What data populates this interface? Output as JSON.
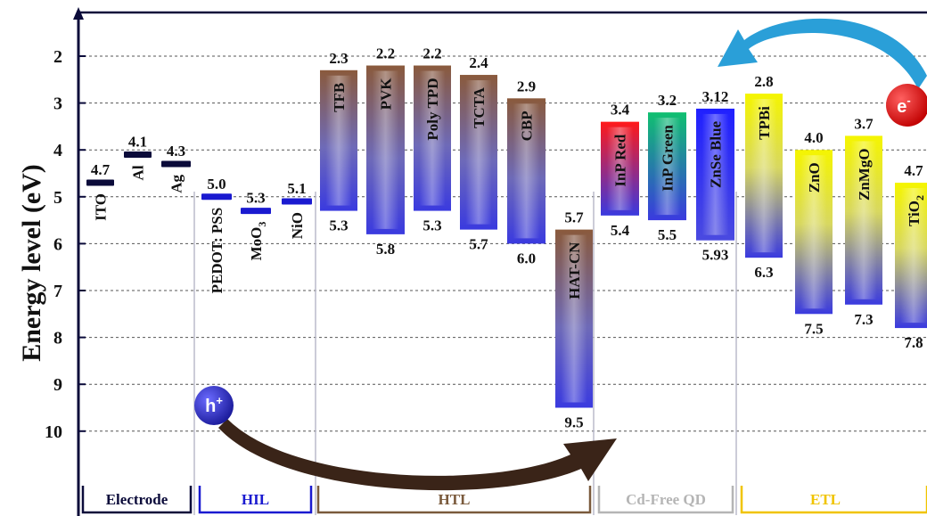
{
  "axis": {
    "ylabel": "Energy level (eV)",
    "ticks": [
      "2",
      "3",
      "4",
      "5",
      "6",
      "7",
      "8",
      "9",
      "10"
    ]
  },
  "groups": [
    {
      "key": "electrode",
      "label": "Electrode",
      "color": "#0b0b3a"
    },
    {
      "key": "hil",
      "label": "HIL",
      "color": "#1a1ad0"
    },
    {
      "key": "htl",
      "label": "HTL",
      "color": "#7a5a3c"
    },
    {
      "key": "qd",
      "label": "Cd-Free QD",
      "color": "#b5b5b5"
    },
    {
      "key": "etl",
      "label": "ETL",
      "color": "#f0c400"
    }
  ],
  "chart_data": {
    "type": "energy-level-diagram",
    "ylabel": "Energy level (eV)",
    "ylim": [
      1.0,
      11.7
    ],
    "inverted": true,
    "materials": [
      {
        "group": "electrode",
        "name": "ITO",
        "value": 4.7,
        "value_label": "4.7"
      },
      {
        "group": "electrode",
        "name": "Al",
        "value": 4.1,
        "value_label": "4.1"
      },
      {
        "group": "electrode",
        "name": "Ag",
        "value": 4.3,
        "value_label": "4.3"
      },
      {
        "group": "hil",
        "name": "PEDOT: PSS",
        "value": 5.0,
        "value_label": "5.0"
      },
      {
        "group": "hil",
        "name": "MoO3",
        "value": 5.3,
        "value_label": "5.3"
      },
      {
        "group": "hil",
        "name": "NiO",
        "value": 5.1,
        "value_label": "5.1"
      },
      {
        "group": "htl",
        "name": "TFB",
        "lumo": 2.3,
        "homo": 5.3,
        "lumo_label": "2.3",
        "homo_label": "5.3"
      },
      {
        "group": "htl",
        "name": "PVK",
        "lumo": 2.2,
        "homo": 5.8,
        "lumo_label": "2.2",
        "homo_label": "5.8"
      },
      {
        "group": "htl",
        "name": "Poly TPD",
        "lumo": 2.2,
        "homo": 5.3,
        "lumo_label": "2.2",
        "homo_label": "5.3"
      },
      {
        "group": "htl",
        "name": "TCTA",
        "lumo": 2.4,
        "homo": 5.7,
        "lumo_label": "2.4",
        "homo_label": "5.7"
      },
      {
        "group": "htl",
        "name": "CBP",
        "lumo": 2.9,
        "homo": 6.0,
        "lumo_label": "2.9",
        "homo_label": "6.0"
      },
      {
        "group": "htl",
        "name": "HAT-CN",
        "lumo": 5.7,
        "homo": 9.5,
        "lumo_label": "5.7",
        "homo_label": "9.5"
      },
      {
        "group": "qd",
        "name": "InP Red",
        "lumo": 3.4,
        "homo": 5.4,
        "lumo_label": "3.4",
        "homo_label": "5.4"
      },
      {
        "group": "qd",
        "name": "InP Green",
        "lumo": 3.2,
        "homo": 5.5,
        "lumo_label": "3.2",
        "homo_label": "5.5"
      },
      {
        "group": "qd",
        "name": "ZnSe Blue",
        "lumo": 3.12,
        "homo": 5.93,
        "lumo_label": "3.12",
        "homo_label": "5.93"
      },
      {
        "group": "etl",
        "name": "TPBi",
        "lumo": 2.8,
        "homo": 6.3,
        "lumo_label": "2.8",
        "homo_label": "6.3"
      },
      {
        "group": "etl",
        "name": "ZnO",
        "lumo": 4.0,
        "homo": 7.5,
        "lumo_label": "4.0",
        "homo_label": "7.5"
      },
      {
        "group": "etl",
        "name": "ZnMgO",
        "lumo": 3.7,
        "homo": 7.3,
        "lumo_label": "3.7",
        "homo_label": "7.3"
      },
      {
        "group": "etl",
        "name": "TiO2",
        "lumo": 4.7,
        "homo": 7.8,
        "lumo_label": "4.7",
        "homo_label": "7.8"
      }
    ]
  },
  "carriers": {
    "hole": "h",
    "hole_sup": "+",
    "electron": "e",
    "electron_sup": "-"
  },
  "colors": {
    "axis": "#0b0b3a",
    "electrode": "#0b0b3a",
    "hil": "#1a1ad0",
    "htl_top": "#8a5a3c",
    "htl_bottom": "#3a3adf",
    "red_top": "#ff1a1a",
    "green_top": "#10c070",
    "blue_top": "#2020ff",
    "qd_bottom": "#3a3adf",
    "etl_top": "#f5f500",
    "etl_bottom": "#3a3adf",
    "hole": "#2525c0",
    "electron": "#ee1111",
    "hole_arrow": "#3a2418",
    "electron_arrow": "#2a9fd8"
  }
}
